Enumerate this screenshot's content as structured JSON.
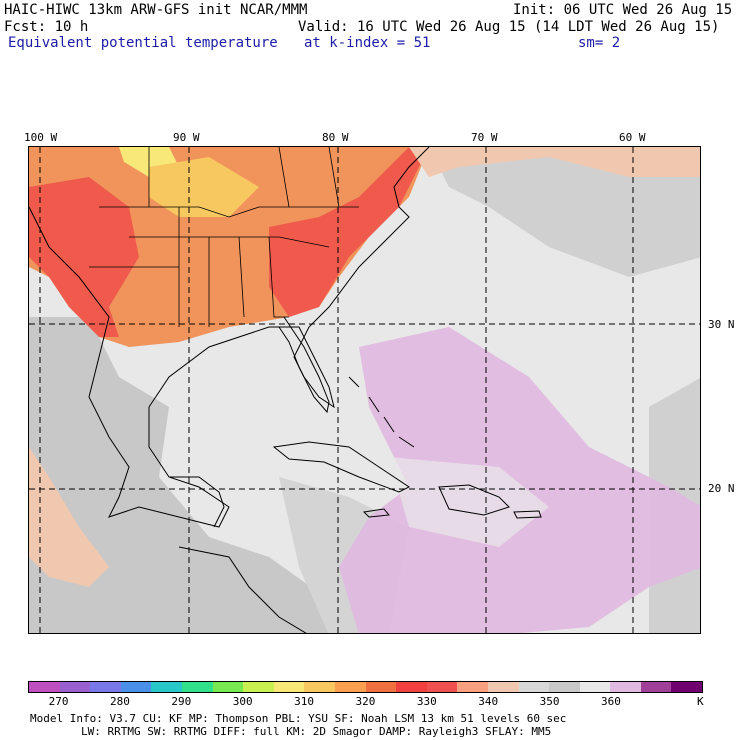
{
  "header": {
    "line1_left": "HAIC-HIWC 13km ARW-GFS init   NCAR/MMM",
    "line1_right": "Init: 06 UTC Wed 26 Aug 15",
    "line2_left": "Fcst:   10 h",
    "line2_right": "Valid: 16 UTC Wed 26 Aug 15 (14 LDT Wed 26 Aug 15)",
    "field_name": "Equivalent potential temperature",
    "level": "at k-index =  51",
    "smoothing": "sm= 2"
  },
  "map": {
    "lon_labels": [
      "100 W",
      "90 W",
      "80 W",
      "70 W",
      "60 W"
    ],
    "lat_labels": [
      "30 N",
      "20 N"
    ],
    "gridlines": "dashed"
  },
  "colorbar": {
    "colors": [
      "#c050c0",
      "#9a60d0",
      "#7878e8",
      "#4a90e8",
      "#28c8c8",
      "#30e08a",
      "#78e850",
      "#c8f050",
      "#f8e878",
      "#f8c860",
      "#f8a050",
      "#f07040",
      "#f04040",
      "#f05050",
      "#f8a080",
      "#f0c8b0",
      "#d8d8d8",
      "#c8c8c8",
      "#e8e8e8",
      "#e0b8e0",
      "#a04098",
      "#700070"
    ],
    "tick_labels": [
      "270",
      "280",
      "290",
      "300",
      "310",
      "320",
      "330",
      "340",
      "350",
      "360"
    ],
    "unit": "K"
  },
  "footer": {
    "line1": "Model Info: V3.7     CU: KF       MP: Thompson     PBL: YSU      SF: Noah LSM     13 km    51 levels   60 sec",
    "line2": "LW: RRTMG   SW: RRTMG  DIFF: full   KM: 2D Smagor DAMP: Rayleigh3  SFLAY: MM5"
  }
}
